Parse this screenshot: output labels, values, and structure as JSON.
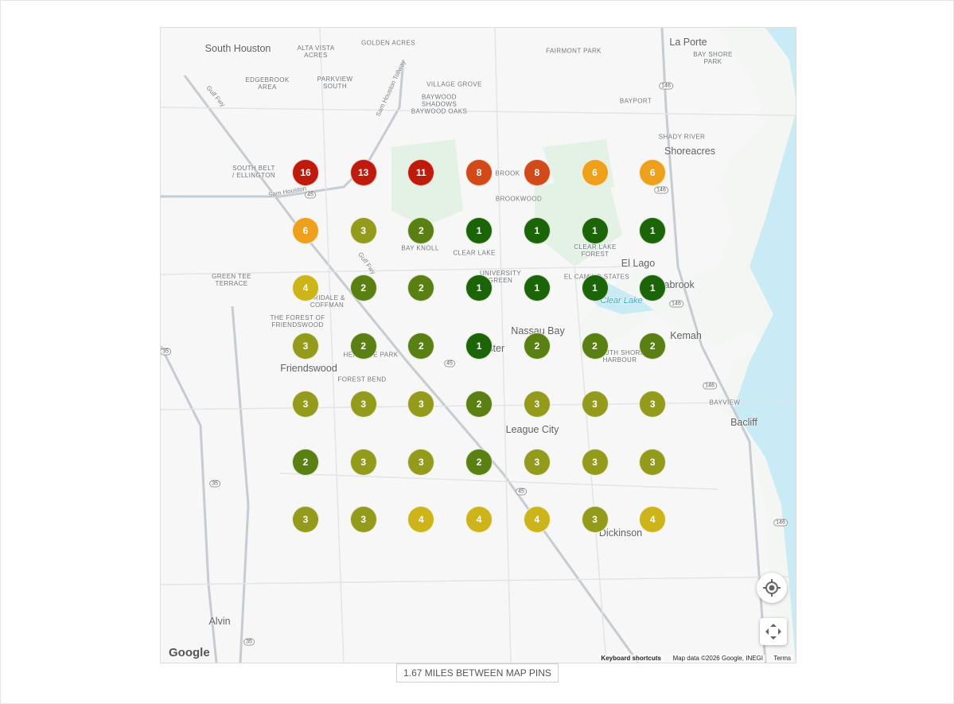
{
  "map": {
    "places": [
      "South Houston",
      "La Porte",
      "Shoreacres",
      "El Lago",
      "Seabrook",
      "Kemah",
      "Nassau Bay",
      "Webster",
      "Friendswood",
      "League City",
      "Bacliff",
      "Dickinson",
      "Alvin"
    ],
    "areas": [
      "GOLDEN ACRES",
      "ALTA VISTA\nACRES",
      "FAIRMONT PARK",
      "BAY SHORE\nPARK",
      "EDGEBROOK\nAREA",
      "PARKVIEW\nSOUTH",
      "VILLAGE GROVE",
      "BAYWOOD\nSHADOWS\nBAYWOOD OAKS",
      "BAYPORT",
      "SHADY RIVER",
      "SOUTH BELT\n/ ELLINGTON",
      "BROOK",
      "BROOKWOOD",
      "BAY KNOLL",
      "CLEAR LAKE",
      "UNIVERSITY\nGREEN",
      "CLEAR LAKE\nFOREST",
      "EL CAMINO STATES",
      "GREEN TEE\nTERRACE",
      "BRIDALE &\nCOFFMAN",
      "THE FOREST OF\nFRIENDSWOOD",
      "HERITAGE PARK",
      "SOUTH SHORE\nHARBOUR",
      "FOREST BEND",
      "BAYVIEW"
    ],
    "water": [
      "Clear Lake"
    ],
    "roads": [
      "Gulf Fwy",
      "Sam Houston Tollway",
      "Gulf Fwy",
      "Sam Houston"
    ],
    "shields": [
      "45",
      "45",
      "45",
      "146",
      "146",
      "146",
      "146",
      "146",
      "35",
      "35",
      "35"
    ],
    "google": "Google",
    "keyboard": "Keyboard shortcuts",
    "attribution": "Map data ©2026 Google, INEGI",
    "terms": "Terms"
  },
  "pins": {
    "rows": [
      [
        16,
        13,
        11,
        8,
        8,
        6,
        6
      ],
      [
        6,
        3,
        2,
        1,
        1,
        1,
        1
      ],
      [
        4,
        2,
        2,
        1,
        1,
        1,
        1
      ],
      [
        3,
        2,
        2,
        1,
        2,
        2,
        2
      ],
      [
        3,
        3,
        3,
        2,
        3,
        3,
        3
      ],
      [
        2,
        3,
        3,
        2,
        3,
        3,
        3
      ],
      [
        3,
        3,
        4,
        4,
        4,
        3,
        4
      ]
    ],
    "colors": {
      "1": "#1b6407",
      "2": "#5a7f12",
      "3": "#949a1c",
      "4": "#cdb41b",
      "6": "#eea01c",
      "8": "#d2491a",
      "11": "#bf1b0c",
      "13": "#bf1b0c",
      "16": "#bf1b0c"
    }
  },
  "footer": "1.67 MILES BETWEEN MAP PINS"
}
